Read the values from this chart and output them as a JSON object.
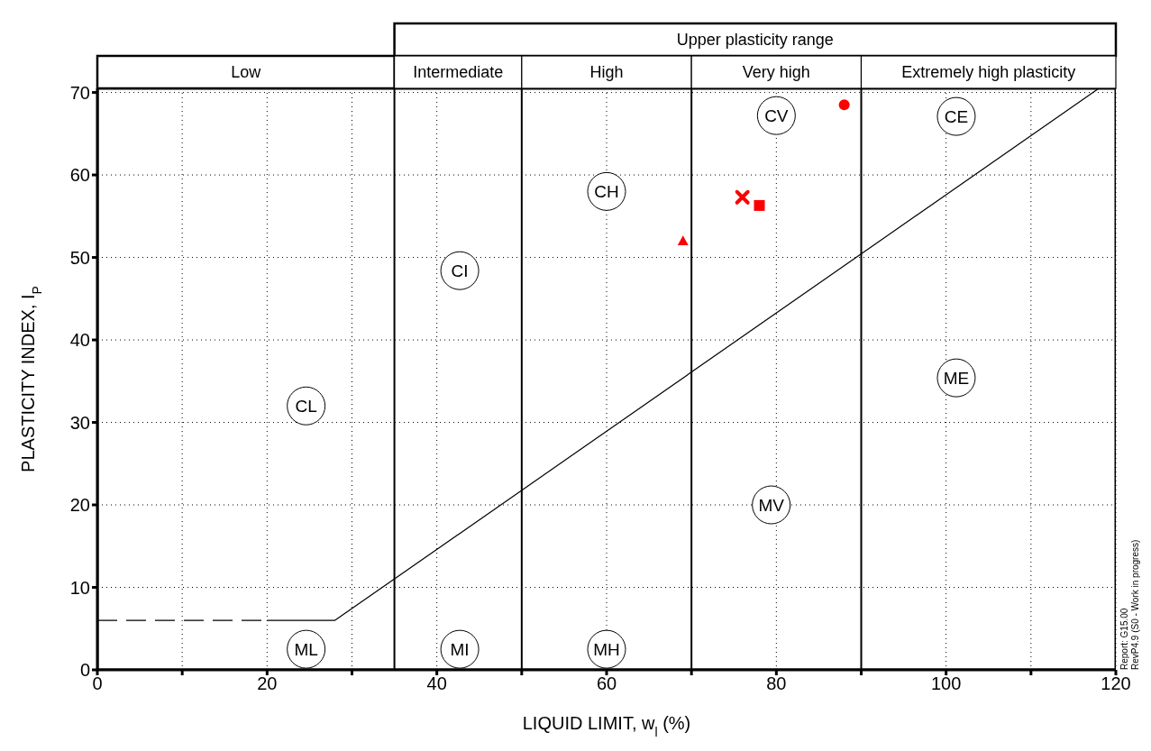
{
  "chart_data": {
    "type": "scatter",
    "xlabel": "LIQUID LIMIT, w$_{l}$ (%)",
    "ylabel": "PLASTICITY INDEX, I$_{P}$",
    "xlim": [
      0,
      120
    ],
    "ylim": [
      0,
      70.5
    ],
    "xticks": [
      0,
      {
        "value": 10,
        "label": null
      },
      20,
      {
        "value": 30,
        "label": null
      },
      40,
      {
        "value": 50,
        "label": null
      },
      60,
      {
        "value": 70,
        "label": null
      },
      80,
      {
        "value": 90,
        "label": null
      },
      100,
      {
        "value": 110,
        "label": null
      },
      120
    ],
    "yticks": [
      0,
      10,
      20,
      30,
      40,
      50,
      60,
      70
    ],
    "grid": true,
    "legend": false,
    "ref_lines": [
      {
        "axis": "x",
        "value": 35
      },
      {
        "axis": "x",
        "value": 50
      },
      {
        "axis": "x",
        "value": 70
      },
      {
        "axis": "x",
        "value": 90
      }
    ],
    "series": [
      {
        "type": "line",
        "line_style": "dashed",
        "marker": "none",
        "color": "#000000",
        "x": [
          0,
          20
        ],
        "values": [
          6,
          6
        ]
      },
      {
        "type": "line",
        "line_style": "solid",
        "marker": "none",
        "color": "#000000",
        "x": [
          20,
          28,
          118
        ],
        "values": [
          6,
          6,
          70.5
        ]
      },
      {
        "type": "scatter",
        "marker": "triangle",
        "color": "#ff0000",
        "x": [
          69
        ],
        "values": [
          52
        ]
      },
      {
        "type": "scatter",
        "marker": "cross",
        "color": "#ff0000",
        "x": [
          76
        ],
        "values": [
          57.3
        ]
      },
      {
        "type": "scatter",
        "marker": "square",
        "color": "#ff0000",
        "x": [
          78
        ],
        "values": [
          56.3
        ]
      },
      {
        "type": "scatter",
        "marker": "circle",
        "color": "#ff0000",
        "x": [
          88
        ],
        "values": [
          68.5
        ]
      }
    ],
    "annotations": [
      "Low",
      "Intermediate",
      "High",
      "Very high",
      "Extremely high plasticity",
      "Upper plasticity range",
      {
        "text": "CL",
        "x": 24.6,
        "y": 32
      },
      {
        "text": "ML",
        "x": 24.6,
        "y": 2.5
      },
      {
        "text": "MI",
        "x": 42.7,
        "y": 2.5
      },
      {
        "text": "MH",
        "x": 60,
        "y": 2.5
      },
      {
        "text": "CI",
        "x": 42.7,
        "y": 48.4
      },
      {
        "text": "CH",
        "x": 60,
        "y": 58
      },
      {
        "text": "CV",
        "x": 80,
        "y": 67.2
      },
      {
        "text": "MV",
        "x": 79.4,
        "y": 20
      },
      {
        "text": "CE",
        "x": 101.2,
        "y": 67.1
      },
      {
        "text": "ME",
        "x": 101.2,
        "y": 35.4
      },
      "Report: G15.00",
      "RevP4.9 (S0 - Work in progress)"
    ]
  }
}
